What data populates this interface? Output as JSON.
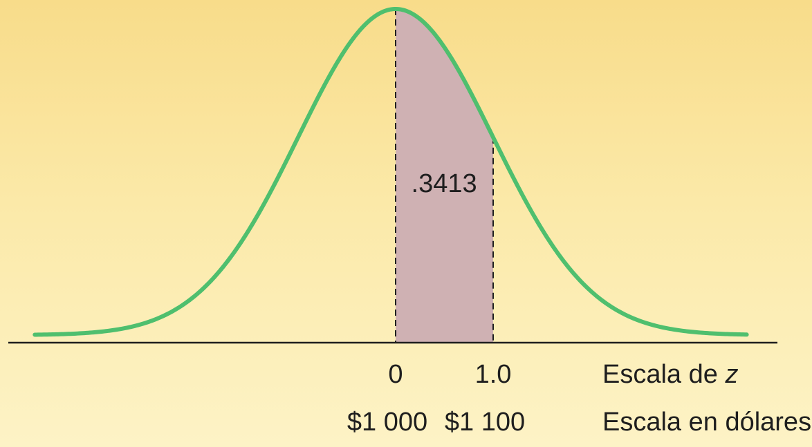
{
  "colors": {
    "background_top": "#f8dc8a",
    "background_bottom": "#fdf3c6",
    "curve": "#4fbf6e",
    "shaded_area": "#cfb1b3",
    "axis": "#1e1e1e",
    "dashed_lines": "#1e1e1e"
  },
  "chart_data": {
    "type": "area",
    "distribution": "normal",
    "mean": 0,
    "std_dev": 1,
    "grid": false,
    "xlim": [
      -3.7,
      3.6
    ],
    "shaded_region": {
      "from": 0,
      "to": 1.0,
      "area": 0.3413
    },
    "area_label": ".3413",
    "z_scale": {
      "label_prefix": "Escala de",
      "label_var": "z",
      "ticks": [
        {
          "value": 0,
          "label": "0"
        },
        {
          "value": 1.0,
          "label": "1.0"
        }
      ]
    },
    "dollar_scale": {
      "label": "Escala en dólares",
      "ticks": [
        {
          "value": 0,
          "label": "$1 000"
        },
        {
          "value": 1.0,
          "label": "$1 100"
        }
      ]
    }
  }
}
